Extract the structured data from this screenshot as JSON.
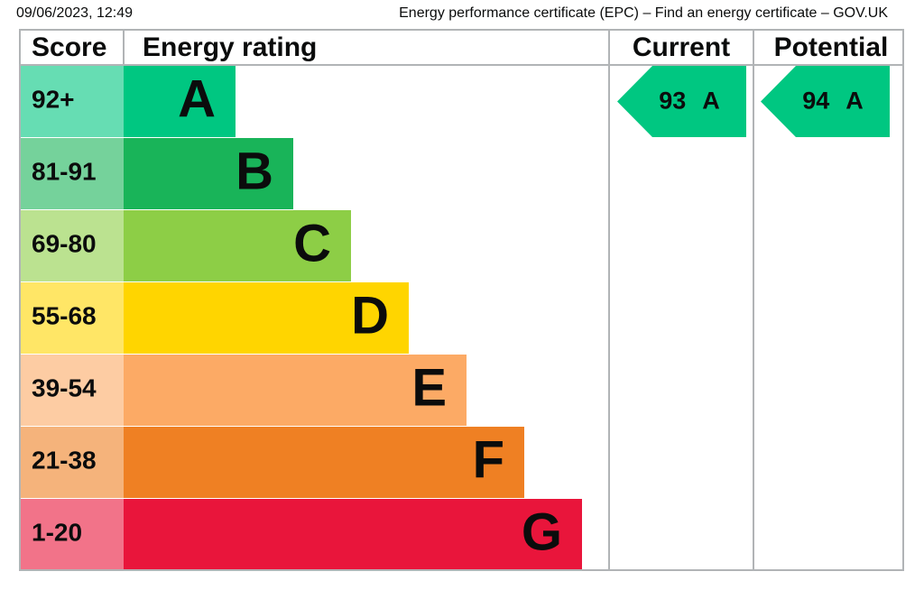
{
  "header": {
    "date": "09/06/2023, 12:49",
    "title": "Energy performance certificate (EPC) – Find an energy certificate – GOV.UK"
  },
  "table": {
    "columns": [
      "Score",
      "Energy rating",
      "Current",
      "Potential"
    ],
    "rows": [
      {
        "score": "92+",
        "rating": "A",
        "color": "#00c781",
        "score_color": "#66ddb3"
      },
      {
        "score": "81-91",
        "rating": "B",
        "color": "#19b459",
        "score_color": "#75d29b"
      },
      {
        "score": "69-80",
        "rating": "C",
        "color": "#8dce46",
        "score_color": "#bbe290"
      },
      {
        "score": "55-68",
        "rating": "D",
        "color": "#ffd500",
        "score_color": "#ffe666"
      },
      {
        "score": "39-54",
        "rating": "E",
        "color": "#fcaa65",
        "score_color": "#fdcca3"
      },
      {
        "score": "21-38",
        "rating": "F",
        "color": "#ef8023",
        "score_color": "#f5b37b"
      },
      {
        "score": "1-20",
        "rating": "G",
        "color": "#e9153b",
        "score_color": "#f27389"
      }
    ],
    "current": {
      "score": 93,
      "rating": "A",
      "color": "#00c781"
    },
    "potential": {
      "score": 94,
      "rating": "A",
      "color": "#00c781"
    }
  }
}
